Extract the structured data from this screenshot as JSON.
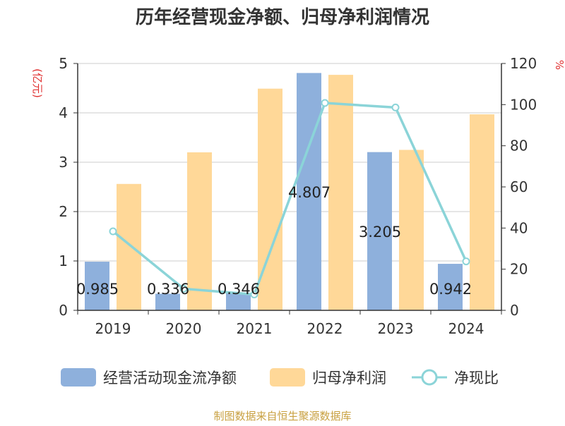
{
  "chart_data": {
    "type": "bar",
    "title": "历年经营现金净额、归母净利润情况",
    "ylabel": "(亿元)",
    "y2label": "%",
    "ylim": [
      0,
      5
    ],
    "y2lim": [
      0,
      120
    ],
    "yticks": [
      "0",
      "1",
      "2",
      "3",
      "4",
      "5"
    ],
    "y2ticks": [
      "0",
      "20",
      "40",
      "60",
      "80",
      "100",
      "120"
    ],
    "categories": [
      "2019",
      "2020",
      "2021",
      "2022",
      "2023",
      "2024"
    ],
    "grid": true,
    "legend_position": "bottom",
    "series": [
      {
        "name": "经营活动现金流净额",
        "type": "bar",
        "axis": "left",
        "color": "#8eb0dc",
        "values": [
          0.985,
          0.336,
          0.346,
          4.807,
          3.205,
          0.942
        ],
        "labels": [
          "0.985",
          "0.336",
          "0.346",
          "4.807",
          "3.205",
          "0.942"
        ]
      },
      {
        "name": "归母净利润",
        "type": "bar",
        "axis": "left",
        "color": "#ffd898",
        "values": [
          2.56,
          3.2,
          4.49,
          4.77,
          3.25,
          3.97
        ]
      },
      {
        "name": "净现比",
        "type": "line",
        "axis": "right",
        "color": "#8bd4d8",
        "values": [
          38.4,
          10.5,
          7.7,
          100.8,
          98.6,
          23.8
        ]
      }
    ]
  },
  "source": "制图数据来自恒生聚源数据库",
  "colors": {
    "title": "#333333",
    "axis_unit": "#e03030",
    "source": "#c8a040",
    "grid": "#cccccc",
    "axis": "#333333"
  }
}
